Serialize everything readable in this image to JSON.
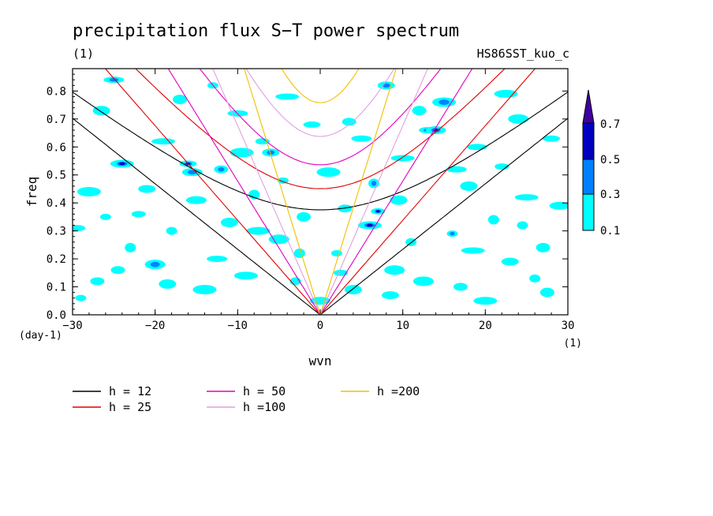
{
  "chart_data": {
    "type": "heatmap",
    "title": "precipitation flux S−T power spectrum",
    "subtitle_left": "(1)",
    "subtitle_right": "HS86SST_kuo_c",
    "xlabel": "wvn",
    "ylabel": "freq",
    "x_unit": "(1)",
    "y_unit": "(day-1)",
    "xlim": [
      -30,
      30
    ],
    "ylim": [
      0,
      0.88
    ],
    "xticks": [
      -30,
      -20,
      -10,
      0,
      10,
      20,
      30
    ],
    "xtick_labels": [
      "−30",
      "−20",
      "−10",
      "0",
      "10",
      "20",
      "30"
    ],
    "yticks": [
      0.0,
      0.1,
      0.2,
      0.3,
      0.4,
      0.5,
      0.6,
      0.7,
      0.8
    ],
    "ytick_labels": [
      "0.0",
      "0.1",
      "0.2",
      "0.3",
      "0.4",
      "0.5",
      "0.6",
      "0.7",
      "0.8"
    ],
    "colorbar": {
      "levels": [
        "0.1",
        "0.3",
        "0.5",
        "0.7"
      ],
      "colors": [
        "#00ffff",
        "#0080ff",
        "#0000c0",
        "#4000a0"
      ]
    },
    "series": [
      {
        "name": "h = 12",
        "color": "#000000",
        "h": 12
      },
      {
        "name": "h = 25",
        "color": "#e00000",
        "h": 25
      },
      {
        "name": "h = 50",
        "color": "#e000c0",
        "h": 50
      },
      {
        "name": "h =100",
        "color": "#e0a0e0",
        "h": 100
      },
      {
        "name": "h =200",
        "color": "#f0c000",
        "h": 200
      }
    ],
    "spots": [
      [
        -29,
        0.06,
        0.15
      ],
      [
        -27,
        0.12,
        0.2
      ],
      [
        -26.5,
        0.73,
        0.2
      ],
      [
        -25,
        0.84,
        0.4
      ],
      [
        -24,
        0.54,
        0.5
      ],
      [
        -23,
        0.24,
        0.2
      ],
      [
        -22,
        0.36,
        0.15
      ],
      [
        -21,
        0.45,
        0.2
      ],
      [
        -20,
        0.18,
        0.45
      ],
      [
        -19,
        0.62,
        0.2
      ],
      [
        -18,
        0.3,
        0.2
      ],
      [
        -17,
        0.77,
        0.2
      ],
      [
        -16,
        0.54,
        0.55
      ],
      [
        -15.5,
        0.51,
        0.3
      ],
      [
        -14,
        0.09,
        0.25
      ],
      [
        -13,
        0.82,
        0.2
      ],
      [
        -12,
        0.52,
        0.45
      ],
      [
        -11,
        0.33,
        0.2
      ],
      [
        -10,
        0.72,
        0.2
      ],
      [
        -9,
        0.14,
        0.2
      ],
      [
        -8,
        0.43,
        0.15
      ],
      [
        -7,
        0.62,
        0.25
      ],
      [
        -6,
        0.58,
        0.45
      ],
      [
        -5,
        0.27,
        0.2
      ],
      [
        -4,
        0.78,
        0.2
      ],
      [
        -3,
        0.12,
        0.2
      ],
      [
        -2,
        0.35,
        0.2
      ],
      [
        -1,
        0.68,
        0.2
      ],
      [
        0,
        0.05,
        0.2
      ],
      [
        1,
        0.51,
        0.2
      ],
      [
        2,
        0.22,
        0.2
      ],
      [
        3,
        0.38,
        0.2
      ],
      [
        4,
        0.09,
        0.25
      ],
      [
        5,
        0.63,
        0.25
      ],
      [
        6,
        0.32,
        0.65
      ],
      [
        6.5,
        0.47,
        0.4
      ],
      [
        7,
        0.37,
        0.5
      ],
      [
        8,
        0.82,
        0.45
      ],
      [
        9,
        0.16,
        0.2
      ],
      [
        10,
        0.56,
        0.2
      ],
      [
        11,
        0.26,
        0.2
      ],
      [
        12,
        0.73,
        0.25
      ],
      [
        13,
        0.66,
        0.5
      ],
      [
        14,
        0.66,
        0.6
      ],
      [
        15,
        0.76,
        0.45
      ],
      [
        16,
        0.29,
        0.3
      ],
      [
        17,
        0.1,
        0.2
      ],
      [
        18,
        0.46,
        0.2
      ],
      [
        19,
        0.6,
        0.2
      ],
      [
        20,
        0.05,
        0.2
      ],
      [
        21,
        0.34,
        0.2
      ],
      [
        22,
        0.53,
        0.2
      ],
      [
        23,
        0.19,
        0.2
      ],
      [
        24,
        0.7,
        0.2
      ],
      [
        25,
        0.42,
        0.2
      ],
      [
        26,
        0.13,
        0.25
      ],
      [
        27,
        0.24,
        0.2
      ],
      [
        28,
        0.63,
        0.2
      ],
      [
        29,
        0.39,
        0.2
      ],
      [
        -28,
        0.44,
        0.2
      ],
      [
        -26,
        0.35,
        0.15
      ],
      [
        -24.5,
        0.16,
        0.2
      ],
      [
        -18.5,
        0.11,
        0.2
      ],
      [
        -12.5,
        0.2,
        0.2
      ],
      [
        -7.5,
        0.3,
        0.15
      ],
      [
        -2.5,
        0.22,
        0.2
      ],
      [
        2.5,
        0.15,
        0.2
      ],
      [
        8.5,
        0.07,
        0.2
      ],
      [
        12.5,
        0.12,
        0.2
      ],
      [
        18.5,
        0.23,
        0.2
      ],
      [
        24.5,
        0.32,
        0.2
      ],
      [
        27.5,
        0.08,
        0.2
      ],
      [
        -29.5,
        0.31,
        0.15
      ],
      [
        -15,
        0.41,
        0.2
      ],
      [
        -9.5,
        0.58,
        0.15
      ],
      [
        -4.5,
        0.48,
        0.15
      ],
      [
        3.5,
        0.69,
        0.15
      ],
      [
        9.5,
        0.41,
        0.15
      ],
      [
        16.5,
        0.52,
        0.15
      ],
      [
        22.5,
        0.79,
        0.2
      ]
    ]
  }
}
